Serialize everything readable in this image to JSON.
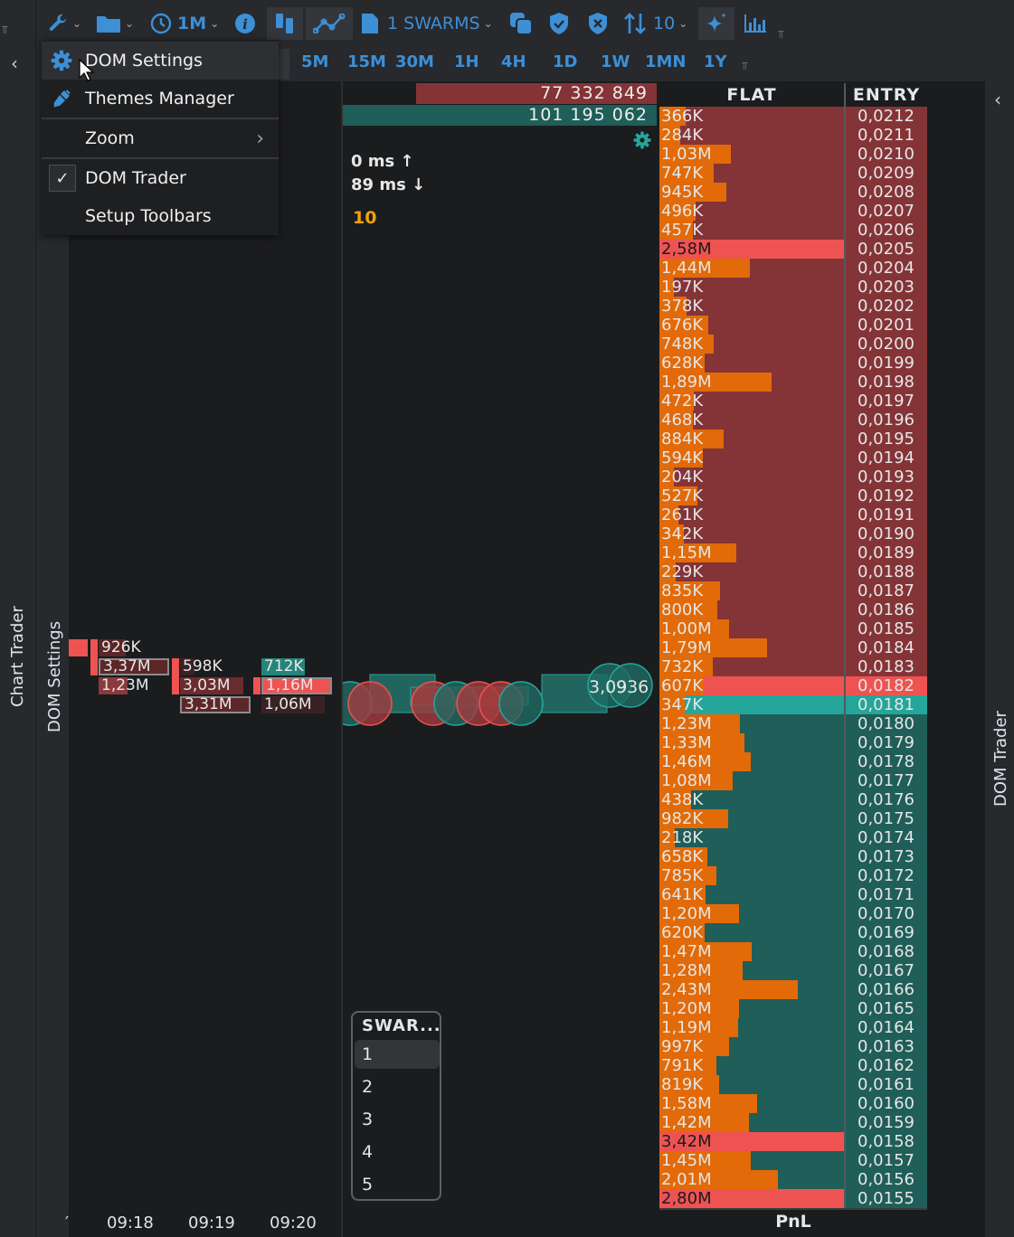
{
  "toolbar": {
    "timeframe": "1M",
    "swarms": "1 SWARMS",
    "depth": "10",
    "icons": [
      "wrench-icon",
      "folder-icon",
      "clock-icon",
      "info-icon",
      "columns-icon",
      "line-chart-icon",
      "document-icon",
      "copy-icon",
      "shield-check-icon",
      "shield-x-icon",
      "sort-arrows-icon",
      "sparkle-icon",
      "bar-chart-icon",
      "overflow-icon"
    ]
  },
  "timeframes": [
    "5M",
    "15M",
    "30M",
    "1H",
    "4H",
    "1D",
    "1W",
    "1MN",
    "1Y"
  ],
  "menu": {
    "items": [
      {
        "label": "DOM Settings",
        "icon": "gear-icon"
      },
      {
        "label": "Themes Manager",
        "icon": "brush-icon"
      },
      {
        "label": "Zoom",
        "icon": "chevron-right-icon"
      },
      {
        "label": "DOM Trader",
        "icon": "check-icon",
        "checked": true
      },
      {
        "label": "Setup Toolbars"
      }
    ]
  },
  "side_labels": {
    "left_outer": "Chart Trader",
    "left_inner": "DOM Settings",
    "right": "DOM Trader"
  },
  "footprint": {
    "cells": [
      {
        "text": "926K"
      },
      {
        "text": "3,37M"
      },
      {
        "text": "1,23M"
      },
      {
        "text": "598K"
      },
      {
        "text": "3,03M"
      },
      {
        "text": "3,31M"
      },
      {
        "text": "712K"
      },
      {
        "text": "1,16M"
      },
      {
        "text": "1,06M"
      }
    ],
    "times": [
      "09:18",
      "09:19",
      "09:20"
    ]
  },
  "middle": {
    "sell_total": "77 332 849",
    "buy_total": "101 195 062",
    "latency_up": "0 ms",
    "latency_down": "89 ms",
    "count": "10",
    "bubble_texts": [
      "3,09",
      "936"
    ]
  },
  "swarm_list": {
    "title": "SWAR...",
    "options": [
      "1",
      "2",
      "3",
      "4",
      "5"
    ],
    "selected": "1"
  },
  "dom": {
    "header_flat": "FLAT",
    "header_entry": "ENTRY",
    "footer": "PnL",
    "colors": {
      "ask_bg": "#843437",
      "bid_bg": "#1f5e59",
      "volume_bar": "#e26a08",
      "highlight_red": "#ee5352",
      "highlight_teal": "#25a69a"
    },
    "rows": [
      {
        "flat": "366K",
        "entry": "0,0212",
        "side": "ask",
        "vol": 0.366
      },
      {
        "flat": "284K",
        "entry": "0,0211",
        "side": "ask",
        "vol": 0.284
      },
      {
        "flat": "1,03M",
        "entry": "0,0210",
        "side": "ask",
        "vol": 1.03
      },
      {
        "flat": "747K",
        "entry": "0,0209",
        "side": "ask",
        "vol": 0.747
      },
      {
        "flat": "945K",
        "entry": "0,0208",
        "side": "ask",
        "vol": 0.945
      },
      {
        "flat": "496K",
        "entry": "0,0207",
        "side": "ask",
        "vol": 0.496
      },
      {
        "flat": "457K",
        "entry": "0,0206",
        "side": "ask",
        "vol": 0.457
      },
      {
        "flat": "2,58M",
        "entry": "0,0205",
        "side": "ask",
        "vol": 2.58,
        "hl": "flat-red"
      },
      {
        "flat": "1,44M",
        "entry": "0,0204",
        "side": "ask",
        "vol": 1.44
      },
      {
        "flat": "197K",
        "entry": "0,0203",
        "side": "ask",
        "vol": 0.197
      },
      {
        "flat": "378K",
        "entry": "0,0202",
        "side": "ask",
        "vol": 0.378
      },
      {
        "flat": "676K",
        "entry": "0,0201",
        "side": "ask",
        "vol": 0.676
      },
      {
        "flat": "748K",
        "entry": "0,0200",
        "side": "ask",
        "vol": 0.748
      },
      {
        "flat": "628K",
        "entry": "0,0199",
        "side": "ask",
        "vol": 0.628
      },
      {
        "flat": "1,89M",
        "entry": "0,0198",
        "side": "ask",
        "vol": 1.89
      },
      {
        "flat": "472K",
        "entry": "0,0197",
        "side": "ask",
        "vol": 0.472
      },
      {
        "flat": "468K",
        "entry": "0,0196",
        "side": "ask",
        "vol": 0.468
      },
      {
        "flat": "884K",
        "entry": "0,0195",
        "side": "ask",
        "vol": 0.884
      },
      {
        "flat": "594K",
        "entry": "0,0194",
        "side": "ask",
        "vol": 0.594
      },
      {
        "flat": "204K",
        "entry": "0,0193",
        "side": "ask",
        "vol": 0.204
      },
      {
        "flat": "527K",
        "entry": "0,0192",
        "side": "ask",
        "vol": 0.527
      },
      {
        "flat": "261K",
        "entry": "0,0191",
        "side": "ask",
        "vol": 0.261
      },
      {
        "flat": "342K",
        "entry": "0,0190",
        "side": "ask",
        "vol": 0.342
      },
      {
        "flat": "1,15M",
        "entry": "0,0189",
        "side": "ask",
        "vol": 1.15
      },
      {
        "flat": "229K",
        "entry": "0,0188",
        "side": "ask",
        "vol": 0.229
      },
      {
        "flat": "835K",
        "entry": "0,0187",
        "side": "ask",
        "vol": 0.835
      },
      {
        "flat": "800K",
        "entry": "0,0186",
        "side": "ask",
        "vol": 0.8
      },
      {
        "flat": "1,00M",
        "entry": "0,0185",
        "side": "ask",
        "vol": 1.0
      },
      {
        "flat": "1,79M",
        "entry": "0,0184",
        "side": "ask",
        "vol": 1.79
      },
      {
        "flat": "732K",
        "entry": "0,0183",
        "side": "ask",
        "vol": 0.732
      },
      {
        "flat": "607K",
        "entry": "0,0182",
        "side": "ask",
        "vol": 0.607,
        "hl": "row-red"
      },
      {
        "flat": "347K",
        "entry": "0,0181",
        "side": "bid",
        "vol": 0.347,
        "hl": "row-teal"
      },
      {
        "flat": "1,23M",
        "entry": "0,0180",
        "side": "bid",
        "vol": 1.23
      },
      {
        "flat": "1,33M",
        "entry": "0,0179",
        "side": "bid",
        "vol": 1.33
      },
      {
        "flat": "1,46M",
        "entry": "0,0178",
        "side": "bid",
        "vol": 1.46
      },
      {
        "flat": "1,08M",
        "entry": "0,0177",
        "side": "bid",
        "vol": 1.08
      },
      {
        "flat": "438K",
        "entry": "0,0176",
        "side": "bid",
        "vol": 0.438
      },
      {
        "flat": "982K",
        "entry": "0,0175",
        "side": "bid",
        "vol": 0.982
      },
      {
        "flat": "218K",
        "entry": "0,0174",
        "side": "bid",
        "vol": 0.218
      },
      {
        "flat": "658K",
        "entry": "0,0173",
        "side": "bid",
        "vol": 0.658
      },
      {
        "flat": "785K",
        "entry": "0,0172",
        "side": "bid",
        "vol": 0.785
      },
      {
        "flat": "641K",
        "entry": "0,0171",
        "side": "bid",
        "vol": 0.641
      },
      {
        "flat": "1,20M",
        "entry": "0,0170",
        "side": "bid",
        "vol": 1.2
      },
      {
        "flat": "620K",
        "entry": "0,0169",
        "side": "bid",
        "vol": 0.62
      },
      {
        "flat": "1,47M",
        "entry": "0,0168",
        "side": "bid",
        "vol": 1.47
      },
      {
        "flat": "1,28M",
        "entry": "0,0167",
        "side": "bid",
        "vol": 1.28
      },
      {
        "flat": "2,43M",
        "entry": "0,0166",
        "side": "bid",
        "vol": 2.43
      },
      {
        "flat": "1,20M",
        "entry": "0,0165",
        "side": "bid",
        "vol": 1.2
      },
      {
        "flat": "1,19M",
        "entry": "0,0164",
        "side": "bid",
        "vol": 1.19
      },
      {
        "flat": "997K",
        "entry": "0,0163",
        "side": "bid",
        "vol": 0.997
      },
      {
        "flat": "791K",
        "entry": "0,0162",
        "side": "bid",
        "vol": 0.791
      },
      {
        "flat": "819K",
        "entry": "0,0161",
        "side": "bid",
        "vol": 0.819
      },
      {
        "flat": "1,58M",
        "entry": "0,0160",
        "side": "bid",
        "vol": 1.58
      },
      {
        "flat": "1,42M",
        "entry": "0,0159",
        "side": "bid",
        "vol": 1.42
      },
      {
        "flat": "3,42M",
        "entry": "0,0158",
        "side": "bid",
        "vol": 3.42,
        "hl": "flat-red"
      },
      {
        "flat": "1,45M",
        "entry": "0,0157",
        "side": "bid",
        "vol": 1.45
      },
      {
        "flat": "2,01M",
        "entry": "0,0156",
        "side": "bid",
        "vol": 2.01
      },
      {
        "flat": "2,80M",
        "entry": "0,0155",
        "side": "bid",
        "vol": 2.8,
        "hl": "flat-red"
      }
    ]
  }
}
